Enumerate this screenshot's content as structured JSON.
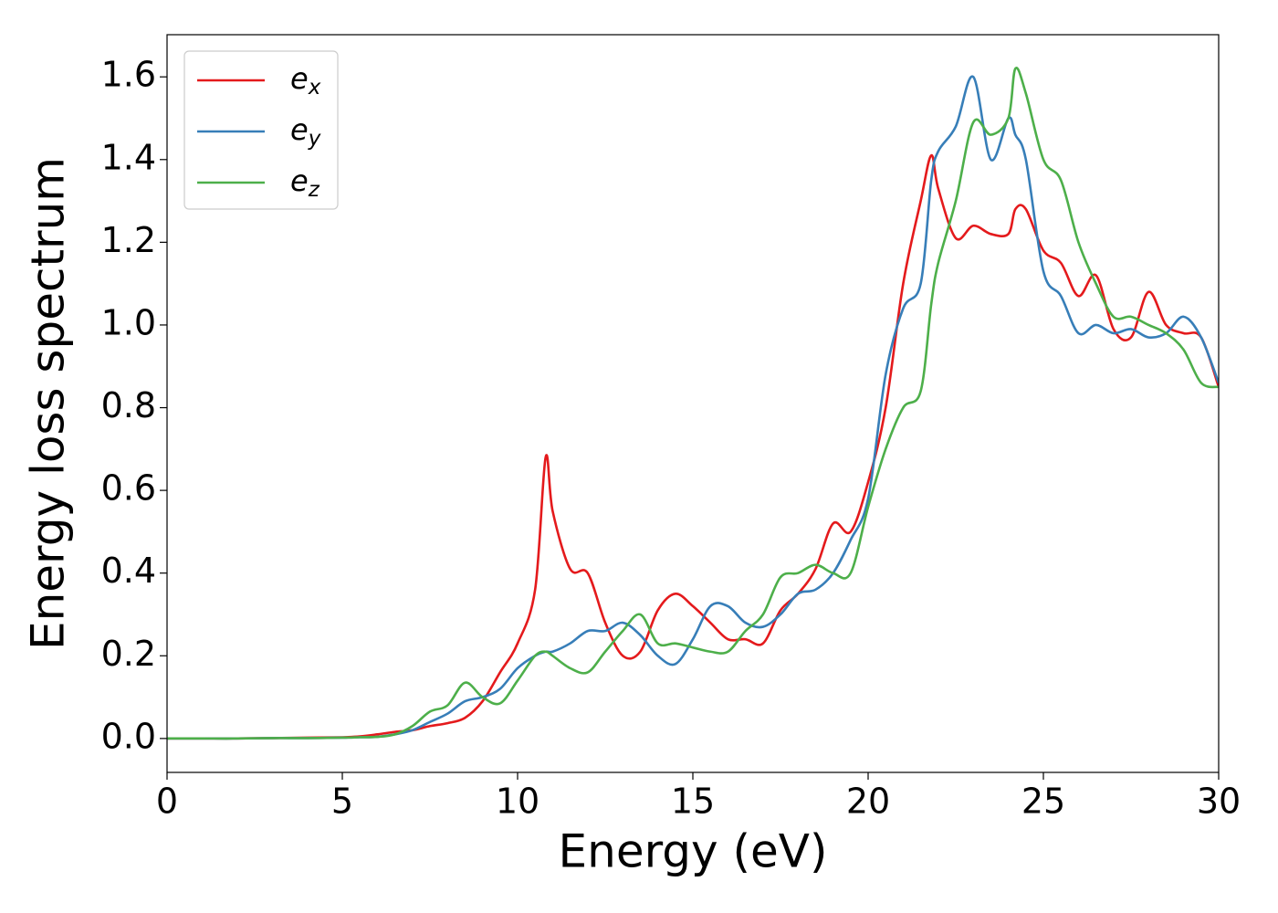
{
  "chart_data": {
    "type": "line",
    "xlabel": "Energy (eV)",
    "ylabel": "Energy loss spectrum",
    "x": [
      0,
      1,
      2,
      3,
      4,
      5,
      5.5,
      6,
      6.5,
      7,
      7.5,
      8,
      8.5,
      9,
      9.5,
      10,
      10.5,
      10.8,
      11,
      11.5,
      12,
      12.5,
      13,
      13.5,
      14,
      14.5,
      15,
      15.5,
      16,
      16.5,
      17,
      17.5,
      18,
      18.5,
      19,
      19.5,
      20,
      20.5,
      21,
      21.5,
      21.8,
      22,
      22.5,
      23,
      23.5,
      24,
      24.2,
      24.5,
      25,
      25.5,
      26,
      26.5,
      27,
      27.5,
      28,
      28.5,
      29,
      29.5,
      30
    ],
    "series": [
      {
        "name": "e_x",
        "color": "#e41a1c",
        "values": [
          0,
          0,
          0,
          0.001,
          0.002,
          0.003,
          0.005,
          0.01,
          0.016,
          0.02,
          0.03,
          0.037,
          0.05,
          0.09,
          0.16,
          0.23,
          0.36,
          0.68,
          0.55,
          0.41,
          0.4,
          0.28,
          0.2,
          0.21,
          0.31,
          0.35,
          0.32,
          0.28,
          0.24,
          0.24,
          0.23,
          0.31,
          0.35,
          0.41,
          0.52,
          0.5,
          0.62,
          0.8,
          1.1,
          1.3,
          1.41,
          1.33,
          1.21,
          1.24,
          1.22,
          1.22,
          1.28,
          1.28,
          1.18,
          1.15,
          1.07,
          1.12,
          0.99,
          0.97,
          1.08,
          1.0,
          0.98,
          0.97,
          0.85
        ]
      },
      {
        "name": "e_y",
        "color": "#377eb8",
        "values": [
          0,
          0,
          0,
          0.001,
          0.001,
          0.002,
          0.003,
          0.004,
          0.01,
          0.02,
          0.04,
          0.06,
          0.09,
          0.1,
          0.12,
          0.17,
          0.2,
          0.21,
          0.21,
          0.23,
          0.26,
          0.26,
          0.28,
          0.25,
          0.2,
          0.18,
          0.24,
          0.32,
          0.32,
          0.28,
          0.27,
          0.3,
          0.35,
          0.36,
          0.4,
          0.48,
          0.58,
          0.88,
          1.04,
          1.1,
          1.35,
          1.42,
          1.48,
          1.6,
          1.4,
          1.5,
          1.46,
          1.4,
          1.13,
          1.07,
          0.98,
          1.0,
          0.98,
          0.99,
          0.97,
          0.98,
          1.02,
          0.97,
          0.86
        ]
      },
      {
        "name": "e_z",
        "color": "#4daf4a",
        "values": [
          0,
          0,
          0,
          0.001,
          0.001,
          0.002,
          0.003,
          0.004,
          0.01,
          0.03,
          0.065,
          0.08,
          0.135,
          0.1,
          0.085,
          0.14,
          0.2,
          0.21,
          0.2,
          0.17,
          0.16,
          0.21,
          0.26,
          0.3,
          0.23,
          0.23,
          0.22,
          0.21,
          0.21,
          0.26,
          0.3,
          0.39,
          0.4,
          0.42,
          0.4,
          0.4,
          0.56,
          0.7,
          0.8,
          0.84,
          1.05,
          1.15,
          1.3,
          1.49,
          1.46,
          1.5,
          1.62,
          1.56,
          1.4,
          1.35,
          1.2,
          1.1,
          1.02,
          1.02,
          1.0,
          0.98,
          0.94,
          0.86,
          0.85
        ]
      }
    ],
    "xlim": [
      0,
      30
    ],
    "xticks": [
      0,
      5,
      10,
      15,
      20,
      25,
      30
    ],
    "ylim": [
      -0.082,
      1.702
    ],
    "yticks": [
      {
        "value": 0,
        "label": "0.0"
      },
      {
        "value": 0.2,
        "label": "0.2"
      },
      {
        "value": 0.4,
        "label": "0.4"
      },
      {
        "value": 0.6,
        "label": "0.6"
      },
      {
        "value": 0.8,
        "label": "0.8"
      },
      {
        "value": 1,
        "label": "1.0"
      },
      {
        "value": 1.2,
        "label": "1.2"
      },
      {
        "value": 1.4,
        "label": "1.4"
      },
      {
        "value": 1.6,
        "label": "1.6"
      }
    ],
    "legend": "upper left",
    "grid": false
  }
}
